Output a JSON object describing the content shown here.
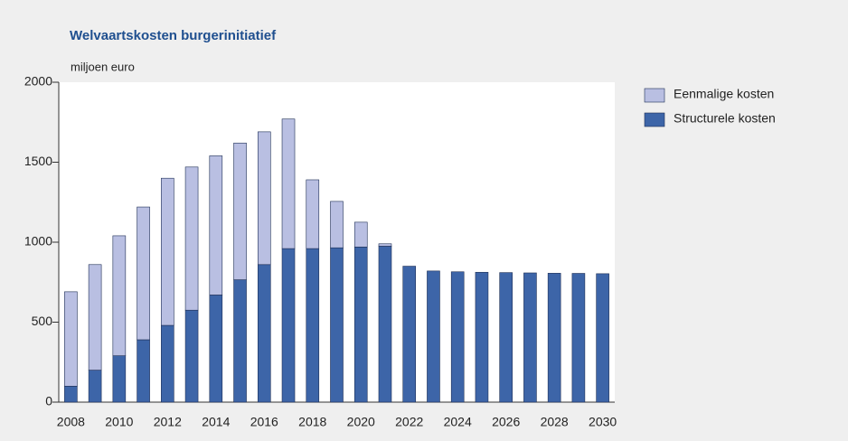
{
  "chart_data": {
    "type": "stacked_bar",
    "title": "Welvaartskosten burgerinitiatief",
    "y_label": "miljoen euro",
    "categories": [
      "2008",
      null,
      "2010",
      null,
      "2012",
      null,
      "2014",
      null,
      "2016",
      null,
      "2018",
      null,
      "2020",
      null,
      "2022",
      null,
      "2024",
      null,
      "2026",
      null,
      "2028",
      null,
      "2030"
    ],
    "series": [
      {
        "name": "Eenmalige kosten",
        "color": "#b9bfe2",
        "values": [
          590,
          660,
          750,
          830,
          920,
          895,
          870,
          855,
          830,
          810,
          430,
          290,
          155,
          15,
          0,
          0,
          0,
          0,
          0,
          0,
          0,
          0,
          0
        ]
      },
      {
        "name": "Structurele kosten",
        "color": "#3d65a8",
        "values": [
          100,
          200,
          290,
          390,
          480,
          575,
          670,
          765,
          860,
          960,
          960,
          965,
          970,
          975,
          850,
          820,
          815,
          812,
          810,
          808,
          806,
          805,
          803
        ]
      }
    ],
    "ylim": [
      0,
      2000
    ],
    "yticks": [
      0,
      500,
      1000,
      1500,
      2000
    ],
    "legend": "right"
  }
}
